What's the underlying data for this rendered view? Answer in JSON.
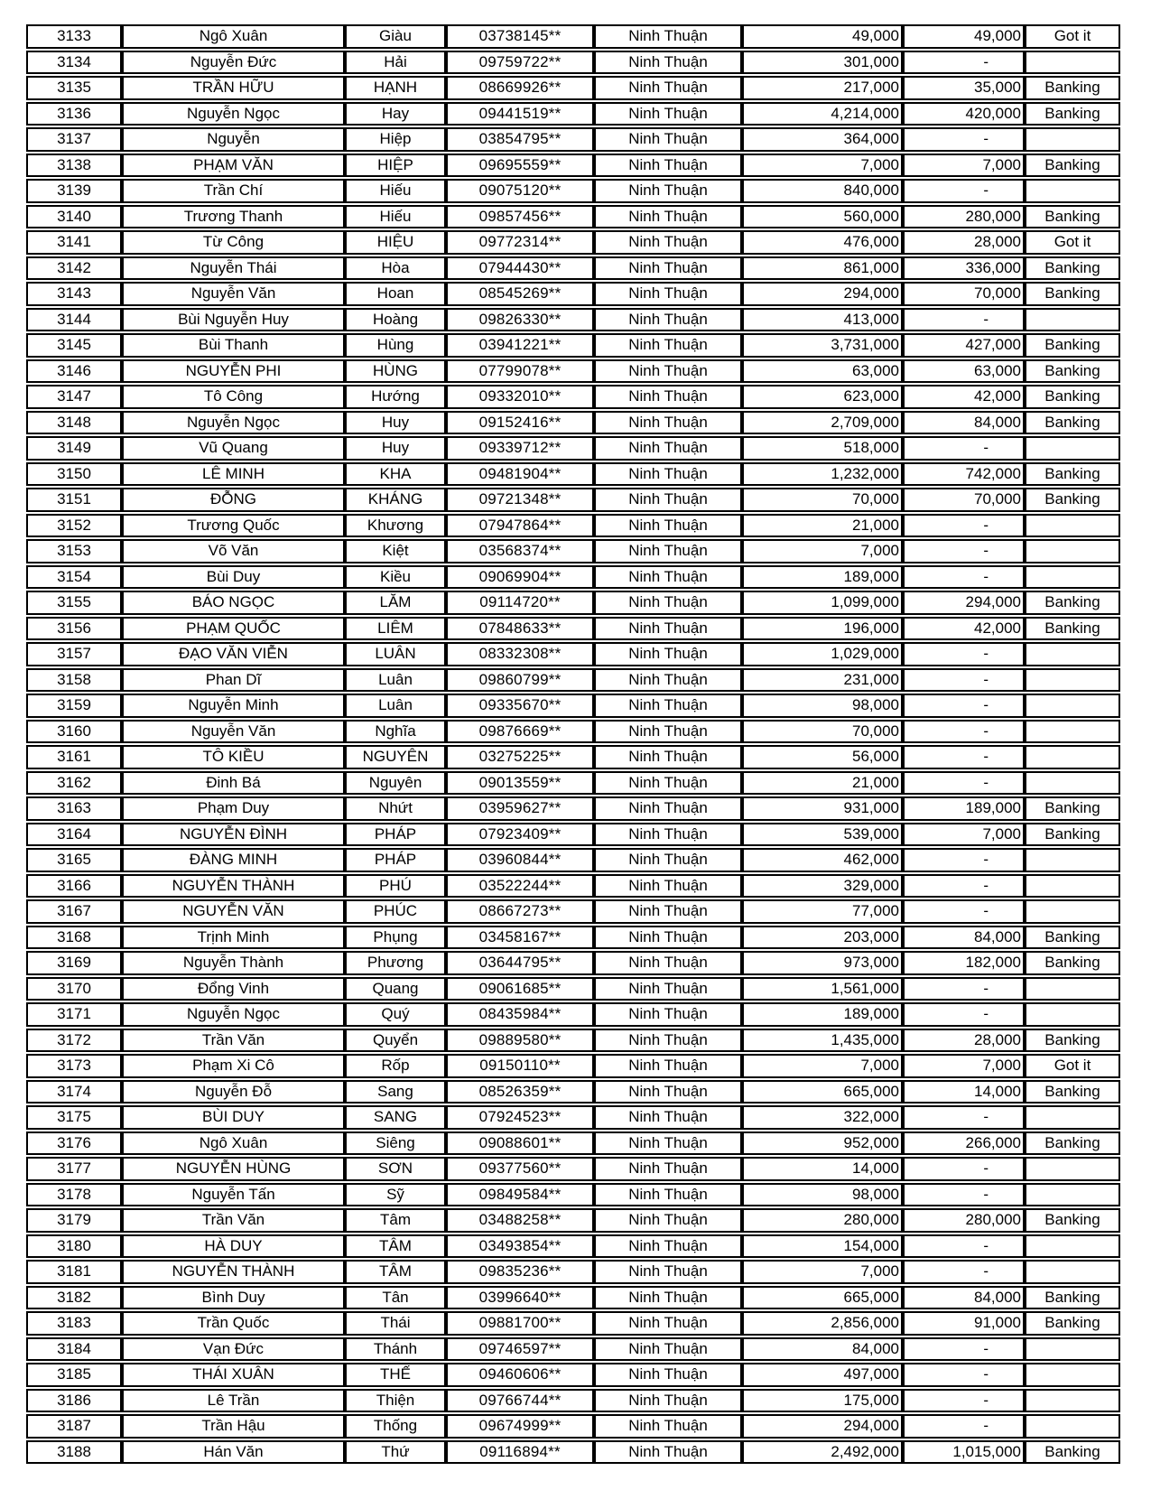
{
  "table": {
    "province": "Ninh Thuận",
    "columns": [
      "id",
      "first_name",
      "last_name",
      "phone",
      "province",
      "amount",
      "paid_amount",
      "status"
    ],
    "status_labels": {
      "banking": "Banking",
      "got_it": "Got it",
      "none": ""
    },
    "rows": [
      [
        "3133",
        "Ngô Xuân",
        "Giàu",
        "03738145**",
        "Ninh Thuận",
        "49,000",
        "49,000",
        "Got it"
      ],
      [
        "3134",
        "Nguyễn Đức",
        "Hải",
        "09759722**",
        "Ninh Thuận",
        "301,000",
        "-",
        ""
      ],
      [
        "3135",
        "TRẦN HỮU",
        "HẠNH",
        "08669926**",
        "Ninh Thuận",
        "217,000",
        "35,000",
        "Banking"
      ],
      [
        "3136",
        "Nguyễn Ngọc",
        "Hay",
        "09441519**",
        "Ninh Thuận",
        "4,214,000",
        "420,000",
        "Banking"
      ],
      [
        "3137",
        "Nguyễn",
        "Hiệp",
        "03854795**",
        "Ninh Thuận",
        "364,000",
        "-",
        ""
      ],
      [
        "3138",
        "PHẠM VĂN",
        "HIỆP",
        "09695559**",
        "Ninh Thuận",
        "7,000",
        "7,000",
        "Banking"
      ],
      [
        "3139",
        "Trần Chí",
        "Hiếu",
        "09075120**",
        "Ninh Thuận",
        "840,000",
        "-",
        ""
      ],
      [
        "3140",
        "Trương Thanh",
        "Hiếu",
        "09857456**",
        "Ninh Thuận",
        "560,000",
        "280,000",
        "Banking"
      ],
      [
        "3141",
        "Từ Công",
        "HIỆU",
        "09772314**",
        "Ninh Thuận",
        "476,000",
        "28,000",
        "Got it"
      ],
      [
        "3142",
        "Nguyễn Thái",
        "Hòa",
        "07944430**",
        "Ninh Thuận",
        "861,000",
        "336,000",
        "Banking"
      ],
      [
        "3143",
        "Nguyễn Văn",
        "Hoan",
        "08545269**",
        "Ninh Thuận",
        "294,000",
        "70,000",
        "Banking"
      ],
      [
        "3144",
        "Bùi Nguyễn Huy",
        "Hoàng",
        "09826330**",
        "Ninh Thuận",
        "413,000",
        "-",
        ""
      ],
      [
        "3145",
        "Bùi Thanh",
        "Hùng",
        "03941221**",
        "Ninh Thuận",
        "3,731,000",
        "427,000",
        "Banking"
      ],
      [
        "3146",
        "NGUYỄN PHI",
        "HÙNG",
        "07799078**",
        "Ninh Thuận",
        "63,000",
        "63,000",
        "Banking"
      ],
      [
        "3147",
        "Tô Công",
        "Hướng",
        "09332010**",
        "Ninh Thuận",
        "623,000",
        "42,000",
        "Banking"
      ],
      [
        "3148",
        "Nguyễn Ngọc",
        "Huy",
        "09152416**",
        "Ninh Thuận",
        "2,709,000",
        "84,000",
        "Banking"
      ],
      [
        "3149",
        "Vũ Quang",
        "Huy",
        "09339712**",
        "Ninh Thuận",
        "518,000",
        "-",
        ""
      ],
      [
        "3150",
        "LÊ MINH",
        "KHA",
        "09481904**",
        "Ninh Thuận",
        "1,232,000",
        "742,000",
        "Banking"
      ],
      [
        "3151",
        "ĐỖNG",
        "KHÁNG",
        "09721348**",
        "Ninh Thuận",
        "70,000",
        "70,000",
        "Banking"
      ],
      [
        "3152",
        "Trương Quốc",
        "Khương",
        "07947864**",
        "Ninh Thuận",
        "21,000",
        "-",
        ""
      ],
      [
        "3153",
        "Võ Văn",
        "Kiệt",
        "03568374**",
        "Ninh Thuận",
        "7,000",
        "-",
        ""
      ],
      [
        "3154",
        "Bùi Duy",
        "Kiều",
        "09069904**",
        "Ninh Thuận",
        "189,000",
        "-",
        ""
      ],
      [
        "3155",
        "BÁO NGỌC",
        "LĂM",
        "09114720**",
        "Ninh Thuận",
        "1,099,000",
        "294,000",
        "Banking"
      ],
      [
        "3156",
        "PHẠM QUỐC",
        "LIÊM",
        "07848633**",
        "Ninh Thuận",
        "196,000",
        "42,000",
        "Banking"
      ],
      [
        "3157",
        "ĐẠO VĂN VIỄN",
        "LUÂN",
        "08332308**",
        "Ninh Thuận",
        "1,029,000",
        "-",
        ""
      ],
      [
        "3158",
        "Phan Dĩ",
        "Luân",
        "09860799**",
        "Ninh Thuận",
        "231,000",
        "-",
        ""
      ],
      [
        "3159",
        "Nguyễn Minh",
        "Luân",
        "09335670**",
        "Ninh Thuận",
        "98,000",
        "-",
        ""
      ],
      [
        "3160",
        "Nguyễn Văn",
        "Nghĩa",
        "09876669**",
        "Ninh Thuận",
        "70,000",
        "-",
        ""
      ],
      [
        "3161",
        "TÔ KIỀU",
        "NGUYÊN",
        "03275225**",
        "Ninh Thuận",
        "56,000",
        "-",
        ""
      ],
      [
        "3162",
        "Đinh Bá",
        "Nguyên",
        "09013559**",
        "Ninh Thuận",
        "21,000",
        "-",
        ""
      ],
      [
        "3163",
        "Phạm Duy",
        "Nhứt",
        "03959627**",
        "Ninh Thuận",
        "931,000",
        "189,000",
        "Banking"
      ],
      [
        "3164",
        "NGUYỄN ĐÌNH",
        "PHÁP",
        "07923409**",
        "Ninh Thuận",
        "539,000",
        "7,000",
        "Banking"
      ],
      [
        "3165",
        "ĐÀNG MINH",
        "PHÁP",
        "03960844**",
        "Ninh Thuận",
        "462,000",
        "-",
        ""
      ],
      [
        "3166",
        "NGUYỄN THÀNH",
        "PHÚ",
        "03522244**",
        "Ninh Thuận",
        "329,000",
        "-",
        ""
      ],
      [
        "3167",
        "NGUYỄN VĂN",
        "PHÚC",
        "08667273**",
        "Ninh Thuận",
        "77,000",
        "-",
        ""
      ],
      [
        "3168",
        "Trịnh Minh",
        "Phụng",
        "03458167**",
        "Ninh Thuận",
        "203,000",
        "84,000",
        "Banking"
      ],
      [
        "3169",
        "Nguyễn Thành",
        "Phương",
        "03644795**",
        "Ninh Thuận",
        "973,000",
        "182,000",
        "Banking"
      ],
      [
        "3170",
        "Đổng Vinh",
        "Quang",
        "09061685**",
        "Ninh Thuận",
        "1,561,000",
        "-",
        ""
      ],
      [
        "3171",
        "Nguyễn Ngọc",
        "Quý",
        "08435984**",
        "Ninh Thuận",
        "189,000",
        "-",
        ""
      ],
      [
        "3172",
        "Trần Văn",
        "Quyển",
        "09889580**",
        "Ninh Thuận",
        "1,435,000",
        "28,000",
        "Banking"
      ],
      [
        "3173",
        "Phạm Xi Cô",
        "Rốp",
        "09150110**",
        "Ninh Thuận",
        "7,000",
        "7,000",
        "Got it"
      ],
      [
        "3174",
        "Nguyễn Đỗ",
        "Sang",
        "08526359**",
        "Ninh Thuận",
        "665,000",
        "14,000",
        "Banking"
      ],
      [
        "3175",
        "BÙI DUY",
        "SANG",
        "07924523**",
        "Ninh Thuận",
        "322,000",
        "-",
        ""
      ],
      [
        "3176",
        "Ngô Xuân",
        "Siêng",
        "09088601**",
        "Ninh Thuận",
        "952,000",
        "266,000",
        "Banking"
      ],
      [
        "3177",
        "NGUYỄN HÙNG",
        "SƠN",
        "09377560**",
        "Ninh Thuận",
        "14,000",
        "-",
        ""
      ],
      [
        "3178",
        "Nguyễn Tấn",
        "Sỹ",
        "09849584**",
        "Ninh Thuận",
        "98,000",
        "-",
        ""
      ],
      [
        "3179",
        "Trần Văn",
        "Tâm",
        "03488258**",
        "Ninh Thuận",
        "280,000",
        "280,000",
        "Banking"
      ],
      [
        "3180",
        "HÀ DUY",
        "TÂM",
        "03493854**",
        "Ninh Thuận",
        "154,000",
        "-",
        ""
      ],
      [
        "3181",
        "NGUYỄN THÀNH",
        "TÂM",
        "09835236**",
        "Ninh Thuận",
        "7,000",
        "-",
        ""
      ],
      [
        "3182",
        "Bình Duy",
        "Tân",
        "03996640**",
        "Ninh Thuận",
        "665,000",
        "84,000",
        "Banking"
      ],
      [
        "3183",
        "Trần Quốc",
        "Thái",
        "09881700**",
        "Ninh Thuận",
        "2,856,000",
        "91,000",
        "Banking"
      ],
      [
        "3184",
        "Vạn Đức",
        "Thánh",
        "09746597**",
        "Ninh Thuận",
        "84,000",
        "-",
        ""
      ],
      [
        "3185",
        "THÁI XUÂN",
        "THẾ",
        "09460606**",
        "Ninh Thuận",
        "497,000",
        "-",
        ""
      ],
      [
        "3186",
        "Lê Trần",
        "Thiện",
        "09766744**",
        "Ninh Thuận",
        "175,000",
        "-",
        ""
      ],
      [
        "3187",
        "Trần Hậu",
        "Thống",
        "09674999**",
        "Ninh Thuận",
        "294,000",
        "-",
        ""
      ],
      [
        "3188",
        "Hán Văn",
        "Thứ",
        "09116894**",
        "Ninh Thuận",
        "2,492,000",
        "1,015,000",
        "Banking"
      ]
    ]
  }
}
